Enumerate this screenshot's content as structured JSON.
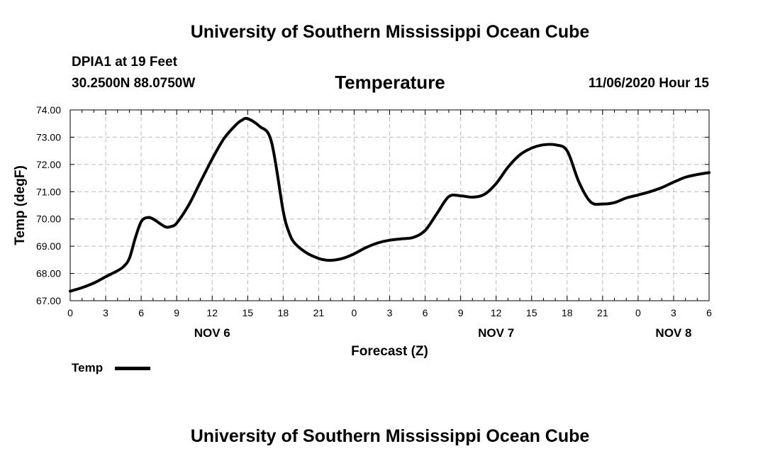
{
  "header": {
    "banner_top": "University of Southern Mississippi Ocean Cube",
    "station": "DPIA1 at 19 Feet",
    "coords": "30.2500N 88.0750W",
    "datetime": "11/06/2020 Hour 15"
  },
  "footer": {
    "banner_bottom": "University of Southern Mississippi Ocean Cube"
  },
  "chart_data": {
    "type": "line",
    "title": "Temperature",
    "xlabel": "Forecast (Z)",
    "ylabel": "Temp (degF)",
    "ylim": [
      67,
      74
    ],
    "xlim": [
      0,
      54
    ],
    "y_ticks": [
      "67.00",
      "68.00",
      "69.00",
      "70.00",
      "71.00",
      "72.00",
      "73.00",
      "74.00"
    ],
    "x_tick_labels": [
      "0",
      "3",
      "6",
      "9",
      "12",
      "15",
      "18",
      "21",
      "0",
      "3",
      "6",
      "9",
      "12",
      "15",
      "18",
      "21",
      "0",
      "3",
      "6"
    ],
    "day_labels": [
      {
        "label": "NOV 6",
        "hour": 12
      },
      {
        "label": "NOV 7",
        "hour": 36
      },
      {
        "label": "NOV 8",
        "hour": 51
      }
    ],
    "grid": true,
    "legend": {
      "position": "bottom-left",
      "entries": [
        "Temp"
      ]
    },
    "series": [
      {
        "name": "Temp",
        "color": "#000000",
        "x": [
          0,
          1,
          2,
          3,
          4,
          4.5,
          5,
          5.5,
          6,
          6.5,
          7,
          8,
          8.5,
          9,
          10,
          11,
          12,
          13,
          14,
          14.5,
          15,
          16,
          17,
          18,
          18.5,
          19,
          20,
          21,
          21.5,
          22,
          23,
          24,
          25,
          26,
          27,
          28,
          29,
          30,
          31,
          32,
          33,
          34,
          35,
          36,
          37,
          38,
          39,
          40,
          41,
          42,
          43,
          44,
          45,
          46,
          47,
          48,
          49,
          50,
          51,
          52,
          53,
          54
        ],
        "values": [
          67.35,
          67.48,
          67.65,
          67.88,
          68.1,
          68.25,
          68.55,
          69.3,
          69.9,
          70.05,
          70.0,
          69.72,
          69.72,
          69.85,
          70.5,
          71.35,
          72.2,
          72.95,
          73.45,
          73.62,
          73.68,
          73.4,
          72.85,
          70.3,
          69.5,
          69.1,
          68.75,
          68.55,
          68.5,
          68.48,
          68.55,
          68.72,
          68.95,
          69.12,
          69.22,
          69.27,
          69.32,
          69.58,
          70.2,
          70.82,
          70.85,
          70.8,
          70.9,
          71.3,
          71.9,
          72.35,
          72.6,
          72.72,
          72.72,
          72.5,
          71.35,
          70.62,
          70.55,
          70.6,
          70.77,
          70.88,
          71.0,
          71.15,
          71.35,
          71.53,
          71.63,
          71.7
        ]
      }
    ]
  }
}
